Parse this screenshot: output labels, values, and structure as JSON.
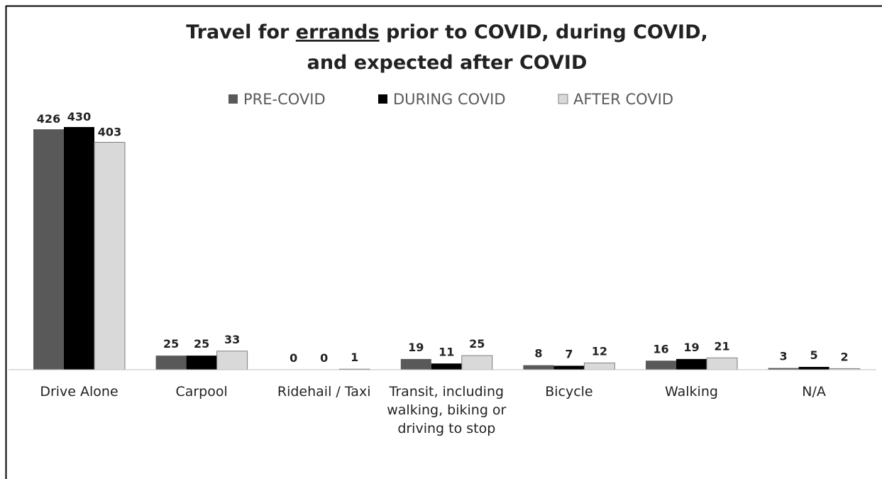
{
  "chart_data": {
    "type": "bar",
    "title_part1": "Travel for ",
    "title_underlined": "errands",
    "title_part2": " prior to COVID, during COVID,",
    "title_line2": "and expected after COVID",
    "categories": [
      [
        "Drive Alone"
      ],
      [
        "Carpool"
      ],
      [
        "Ridehail / Taxi"
      ],
      [
        "Transit, including",
        "walking, biking or",
        "driving to stop"
      ],
      [
        "Bicycle"
      ],
      [
        "Walking"
      ],
      [
        "N/A"
      ]
    ],
    "series": [
      {
        "name": "PRE-COVID",
        "color": "#595959",
        "values": [
          426,
          25,
          0,
          19,
          8,
          16,
          3
        ]
      },
      {
        "name": "DURING COVID",
        "color": "#000000",
        "values": [
          430,
          25,
          0,
          11,
          7,
          19,
          5
        ]
      },
      {
        "name": "AFTER COVID",
        "color": "#d9d9d9",
        "values": [
          403,
          33,
          1,
          25,
          12,
          21,
          2
        ]
      }
    ],
    "ylim": [
      0,
      430
    ],
    "legend_position": "top-center",
    "grid": false
  }
}
